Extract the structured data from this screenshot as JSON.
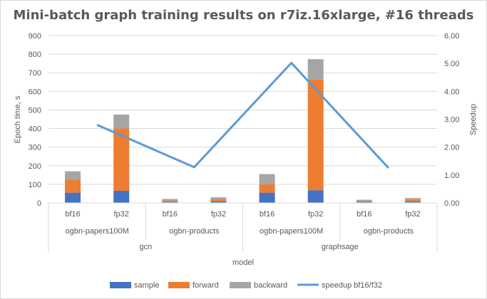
{
  "chart_data": {
    "type": "bar",
    "title": "Mini-batch graph training results on r7iz.16xlarge, #16 threads",
    "xlabel": "model",
    "ylabel": "Epoch time, s",
    "y2label": "Speedup",
    "ylim": [
      0,
      900
    ],
    "y2lim": [
      0,
      6
    ],
    "yticks": [
      "0",
      "100",
      "200",
      "300",
      "400",
      "500",
      "600",
      "700",
      "800",
      "900"
    ],
    "y2ticks": [
      "0.00",
      "1.00",
      "2.00",
      "3.00",
      "4.00",
      "5.00",
      "6.00"
    ],
    "grid": true,
    "legend_position": "bottom",
    "categories": [
      "bf16",
      "fp32",
      "bf16",
      "fp32",
      "bf16",
      "fp32",
      "bf16",
      "fp32"
    ],
    "datasets": [
      "ogbn-papers100M",
      "ogbn-products",
      "ogbn-papers100M",
      "ogbn-products"
    ],
    "models": [
      "gcn",
      "graphsage"
    ],
    "series": [
      {
        "name": "sample",
        "color": "#4472c4",
        "values": [
          55,
          65,
          5,
          8,
          55,
          68,
          4,
          7
        ]
      },
      {
        "name": "forward",
        "color": "#ed7d31",
        "values": [
          70,
          335,
          8,
          12,
          45,
          595,
          7,
          10
        ]
      },
      {
        "name": "backward",
        "color": "#a5a5a5",
        "values": [
          45,
          75,
          8,
          10,
          55,
          110,
          6,
          9
        ]
      }
    ],
    "line_series": {
      "name": "speedup bf16/f32",
      "color": "#5b9bd5",
      "points": [
        {
          "dataset": "ogbn-papers100M",
          "model": "gcn",
          "value": 2.8
        },
        {
          "dataset": "ogbn-products",
          "model": "gcn",
          "value": 1.28
        },
        {
          "dataset": "ogbn-papers100M",
          "model": "graphsage",
          "value": 5.02
        },
        {
          "dataset": "ogbn-products",
          "model": "graphsage",
          "value": 1.25
        }
      ]
    }
  }
}
